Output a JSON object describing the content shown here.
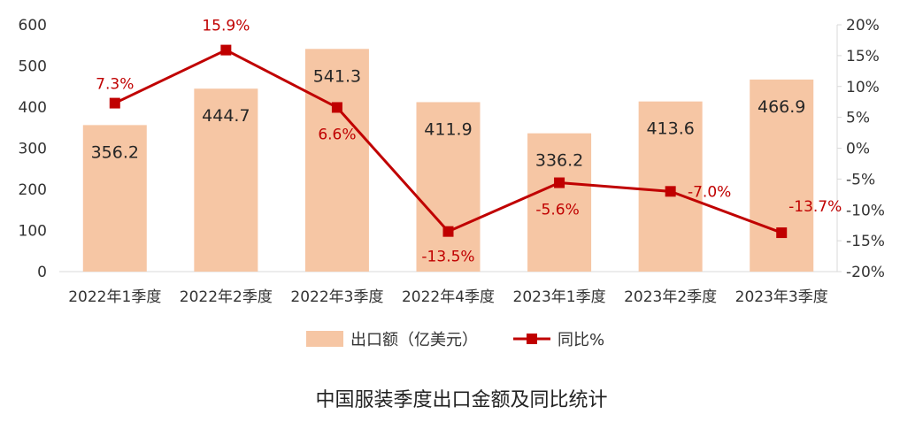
{
  "chart_data": {
    "type": "bar+line",
    "title": "中国服装季度出口金额及同比统计",
    "categories": [
      "2022年1季度",
      "2022年2季度",
      "2022年3季度",
      "2022年4季度",
      "2023年1季度",
      "2023年2季度",
      "2023年3季度"
    ],
    "series": [
      {
        "name": "出口额（亿美元）",
        "type": "bar",
        "axis": "left",
        "values": [
          356.2,
          444.7,
          541.3,
          411.9,
          336.2,
          413.6,
          466.9
        ],
        "labels": [
          "356.2",
          "444.7",
          "541.3",
          "411.9",
          "336.2",
          "413.6",
          "466.9"
        ]
      },
      {
        "name": "同比%",
        "type": "line",
        "axis": "right",
        "values": [
          7.3,
          15.9,
          6.6,
          -13.5,
          -5.6,
          -7.0,
          -13.7
        ],
        "labels": [
          "7.3%",
          "15.9%",
          "6.6%",
          "-13.5%",
          "-5.6%",
          "-7.0%",
          "-13.7%"
        ]
      }
    ],
    "y_left": {
      "min": 0,
      "max": 600,
      "ticks": [
        "0",
        "100",
        "200",
        "300",
        "400",
        "500",
        "600"
      ]
    },
    "y_right": {
      "min": -20,
      "max": 20,
      "ticks": [
        "-20%",
        "-15%",
        "-10%",
        "-5%",
        "0%",
        "5%",
        "10%",
        "15%",
        "20%"
      ]
    },
    "legend_position": "bottom",
    "grid": false,
    "colors": {
      "bar": "#f6c6a4",
      "line": "#c00000",
      "text": "#333333",
      "axis": "#d9d9d9"
    }
  }
}
